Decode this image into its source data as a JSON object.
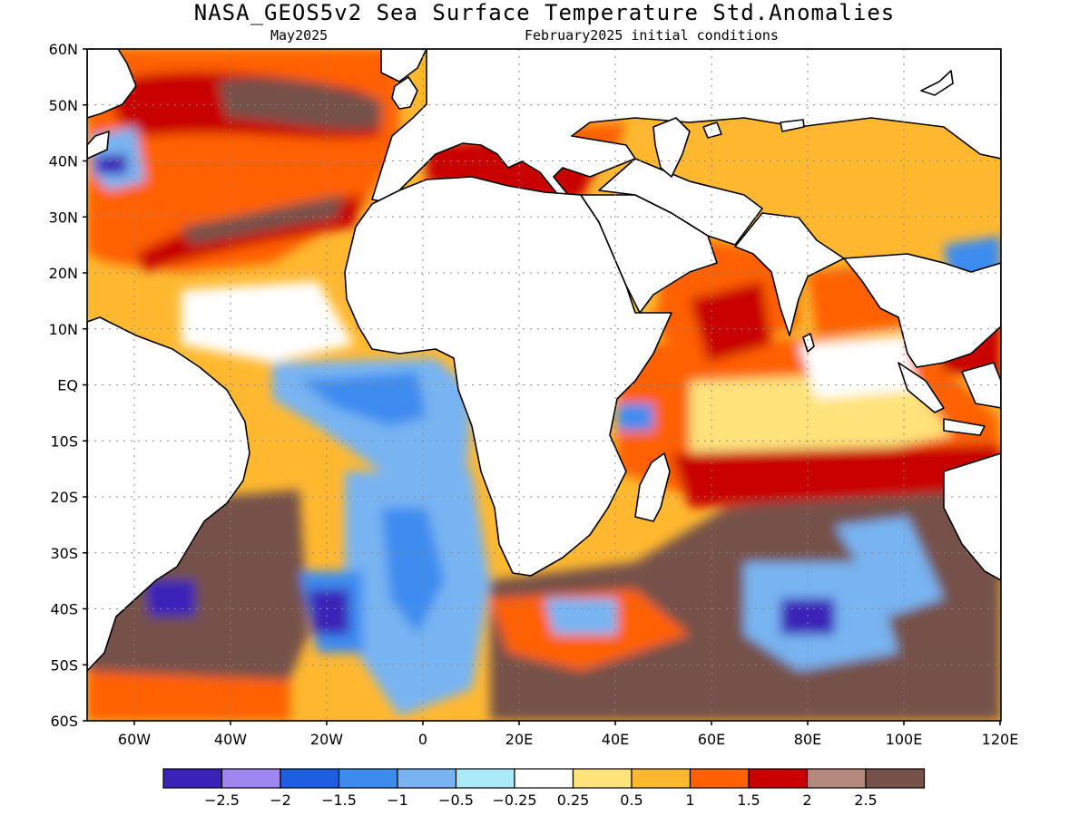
{
  "title": "NASA_GEOS5v2 Sea Surface Temperature Std.Anomalies",
  "subtitle_left": "May2025",
  "subtitle_right": "February2025 initial conditions",
  "lat_labels": [
    "60N",
    "50N",
    "40N",
    "30N",
    "20N",
    "10N",
    "EQ",
    "10S",
    "20S",
    "30S",
    "40S",
    "50S",
    "60S"
  ],
  "lon_labels": [
    "60W",
    "40W",
    "20W",
    "0",
    "20E",
    "40E",
    "60E",
    "80E",
    "100E",
    "120E"
  ],
  "colorbar": {
    "colors": [
      "#3a22b8",
      "#9e86f0",
      "#1c5fe0",
      "#3c8cf0",
      "#78b4f2",
      "#aaeaf8",
      "#ffffff",
      "#ffe27a",
      "#ffb830",
      "#ff6000",
      "#c80000",
      "#b4887a",
      "#76514a"
    ],
    "tick_labels": [
      "-2.5",
      "-2",
      "-1.5",
      "-1",
      "-0.5",
      "-0.25",
      "0.25",
      "0.5",
      "1",
      "1.5",
      "2",
      "2.5"
    ]
  }
}
